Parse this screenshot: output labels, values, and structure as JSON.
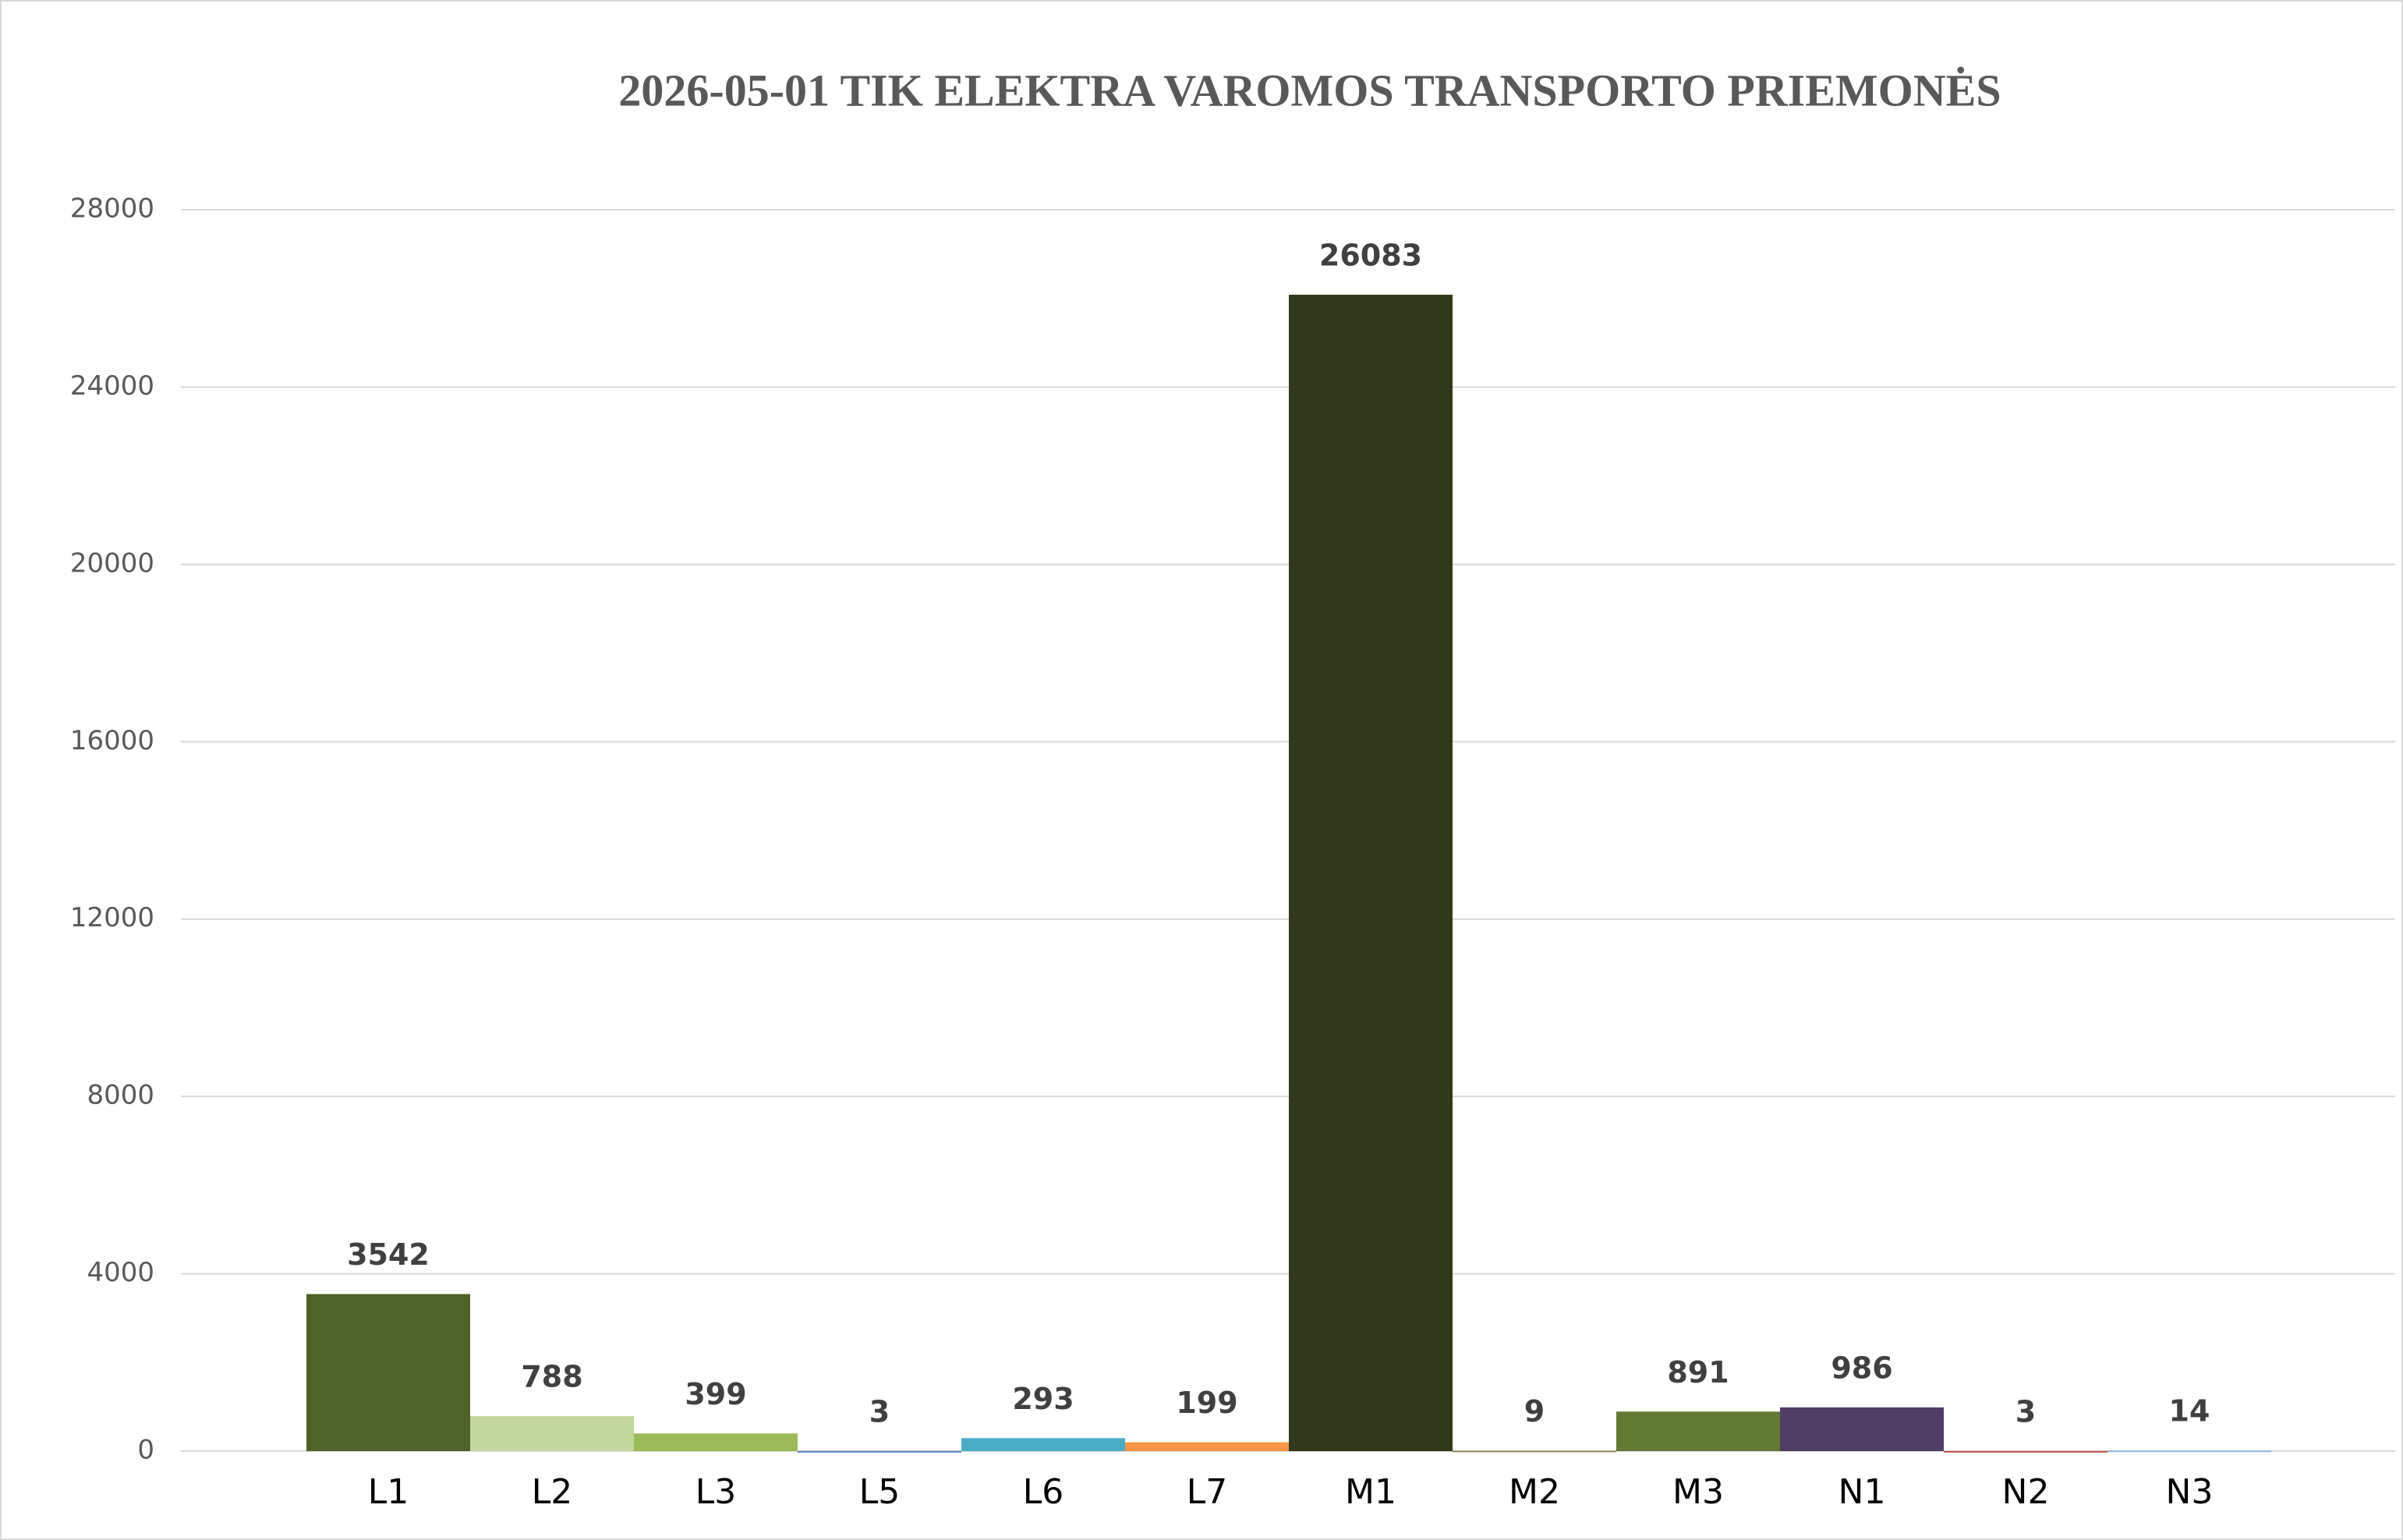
{
  "chart_data": {
    "type": "bar",
    "title": "2026-05-01 TIK ELEKTRA VAROMOS TRANSPORTO PRIEMONĖS",
    "categories": [
      "L1",
      "L2",
      "L3",
      "L5",
      "L6",
      "L7",
      "M1",
      "M2",
      "M3",
      "N1",
      "N2",
      "N3"
    ],
    "values": [
      3542,
      788,
      399,
      3,
      293,
      199,
      26083,
      9,
      891,
      986,
      3,
      14
    ],
    "colors": [
      "#4f6228",
      "#c3d69b",
      "#9bbb59",
      "#4f81bd",
      "#4bacc6",
      "#f79646",
      "#31391a",
      "#938953",
      "#617a34",
      "#4f3d63",
      "#c0504d",
      "#8eb4e3"
    ],
    "ylim": [
      0,
      28000
    ],
    "yticks": [
      0,
      4000,
      8000,
      12000,
      16000,
      20000,
      24000,
      28000
    ],
    "grid": true
  }
}
